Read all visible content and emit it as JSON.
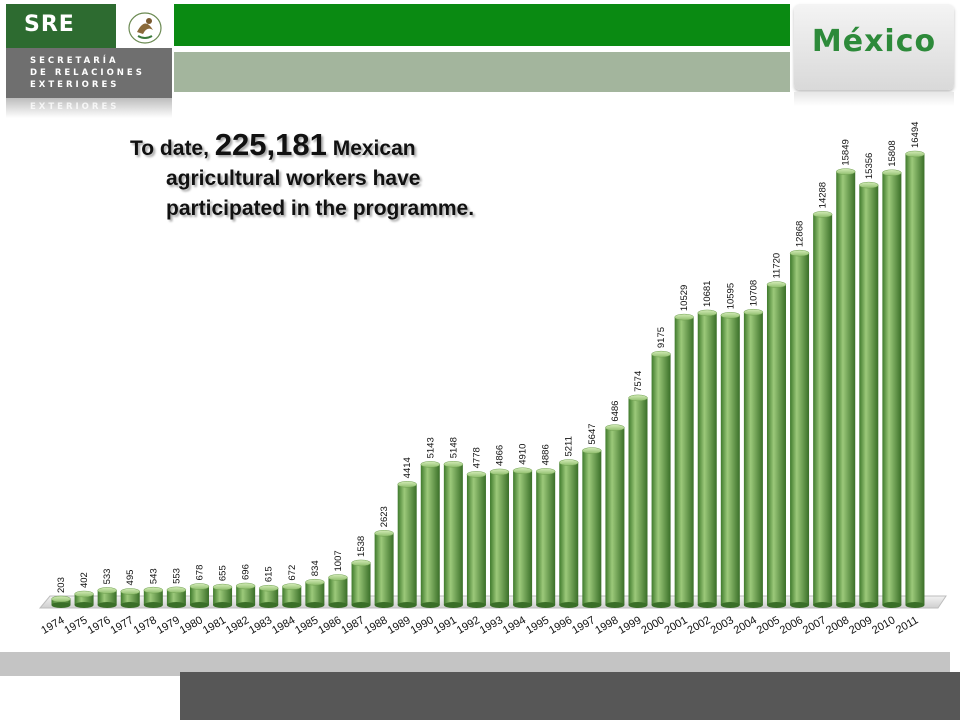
{
  "header": {
    "sre_logo": "SRE",
    "sre_lines": [
      "SECRETARÍA",
      "DE RELACIONES",
      "EXTERIORES"
    ],
    "country_logo": "México",
    "seal": "coat-of-arms-icon"
  },
  "headline": {
    "prefix": "To date,",
    "number": "225,181",
    "suffix": "Mexican",
    "line2": "agricultural workers have",
    "line3": "participated in the programme."
  },
  "colors": {
    "brand_green": "#0a8a12",
    "dark_green": "#2d6b30",
    "bar_light": "#9cc97a",
    "bar_dark": "#3f7a2c",
    "footer_dark": "#575757"
  },
  "chart_data": {
    "type": "bar",
    "style": "3d-cylinder",
    "categories": [
      "1974",
      "1975",
      "1976",
      "1977",
      "1978",
      "1979",
      "1980",
      "1981",
      "1982",
      "1983",
      "1984",
      "1985",
      "1986",
      "1987",
      "1988",
      "1989",
      "1990",
      "1991",
      "1992",
      "1993",
      "1994",
      "1995",
      "1996",
      "1997",
      "1998",
      "1999",
      "2000",
      "2001",
      "2002",
      "2003",
      "2004",
      "2005",
      "2006",
      "2007",
      "2008",
      "2009",
      "2010",
      "2011"
    ],
    "values": [
      203,
      402,
      533,
      495,
      543,
      553,
      678,
      655,
      696,
      615,
      672,
      834,
      1007,
      1538,
      2623,
      4414,
      5143,
      5148,
      4778,
      4866,
      4910,
      4886,
      5211,
      5647,
      6486,
      7574,
      9175,
      10529,
      10681,
      10595,
      10708,
      11720,
      12868,
      14288,
      15849,
      15356,
      15808,
      16494
    ],
    "ylim": [
      0,
      18000
    ],
    "grid": false,
    "legend": "none"
  }
}
